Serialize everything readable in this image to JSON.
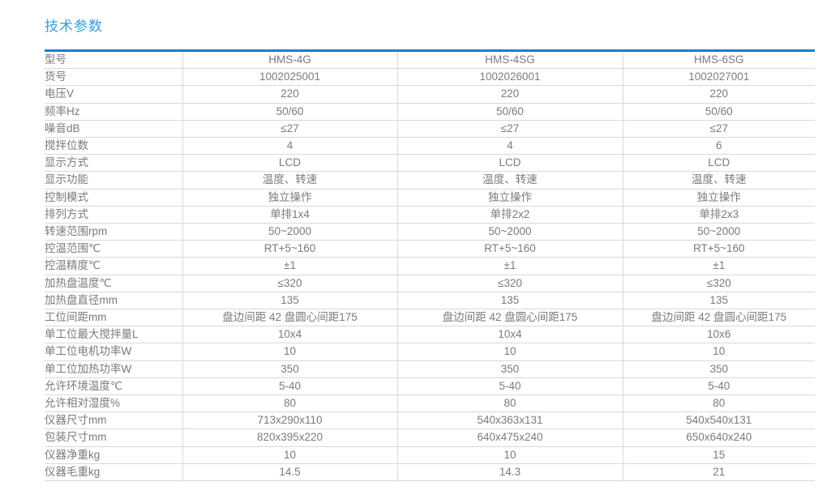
{
  "page": {
    "title": "技术参数"
  },
  "colors": {
    "title_blue": "#35a0d9",
    "table_top_border_blue": "#1583c4",
    "text_gray": "#7b7b7b",
    "grid_gray": "#d9d9d9"
  },
  "table": {
    "rows": [
      {
        "label": "型号",
        "values": [
          "HMS-4G",
          "HMS-4SG",
          "HMS-6SG"
        ]
      },
      {
        "label": "货号",
        "values": [
          "1002025001",
          "1002026001",
          "1002027001"
        ]
      },
      {
        "label": "电压V",
        "values": [
          "220",
          "220",
          "220"
        ]
      },
      {
        "label": "频率Hz",
        "values": [
          "50/60",
          "50/60",
          "50/60"
        ]
      },
      {
        "label": "噪音dB",
        "values": [
          "≤27",
          "≤27",
          "≤27"
        ]
      },
      {
        "label": "搅拌位数",
        "values": [
          "4",
          "4",
          "6"
        ]
      },
      {
        "label": "显示方式",
        "values": [
          "LCD",
          "LCD",
          "LCD"
        ]
      },
      {
        "label": "显示功能",
        "values": [
          "温度、转速",
          "温度、转速",
          "温度、转速"
        ]
      },
      {
        "label": "控制模式",
        "values": [
          "独立操作",
          "独立操作",
          "独立操作"
        ]
      },
      {
        "label": "排列方式",
        "values": [
          "单排1x4",
          "单排2x2",
          "单排2x3"
        ]
      },
      {
        "label": "转速范围rpm",
        "values": [
          "50~2000",
          "50~2000",
          "50~2000"
        ]
      },
      {
        "label": "控温范围℃",
        "values": [
          "RT+5~160",
          "RT+5~160",
          "RT+5~160"
        ]
      },
      {
        "label": "控温精度℃",
        "values": [
          "±1",
          "±1",
          "±1"
        ]
      },
      {
        "label": "加热盘温度℃",
        "values": [
          "≤320",
          "≤320",
          "≤320"
        ]
      },
      {
        "label": "加热盘直径mm",
        "values": [
          "135",
          "135",
          "135"
        ]
      },
      {
        "label": "工位间距mm",
        "values": [
          "盘边间距 42  盘圆心间距175",
          "盘边间距 42  盘圆心间距175",
          "盘边间距 42  盘圆心间距175"
        ]
      },
      {
        "label": "单工位最大搅拌量L",
        "values": [
          "10x4",
          "10x4",
          "10x6"
        ]
      },
      {
        "label": "单工位电机功率W",
        "values": [
          "10",
          "10",
          "10"
        ]
      },
      {
        "label": "单工位加热功率W",
        "values": [
          "350",
          "350",
          "350"
        ]
      },
      {
        "label": "允许环境温度℃",
        "values": [
          "5-40",
          "5-40",
          "5-40"
        ]
      },
      {
        "label": "允许相对湿度%",
        "values": [
          "80",
          "80",
          "80"
        ]
      },
      {
        "label": "仪器尺寸mm",
        "values": [
          "713x290x110",
          "540x363x131",
          "540x540x131"
        ]
      },
      {
        "label": "包装尺寸mm",
        "values": [
          "820x395x220",
          "640x475x240",
          "650x640x240"
        ]
      },
      {
        "label": "仪器净重kg",
        "values": [
          "10",
          "10",
          "15"
        ]
      },
      {
        "label": "仪器毛重kg",
        "values": [
          "14.5",
          "14.3",
          "21"
        ]
      }
    ]
  }
}
